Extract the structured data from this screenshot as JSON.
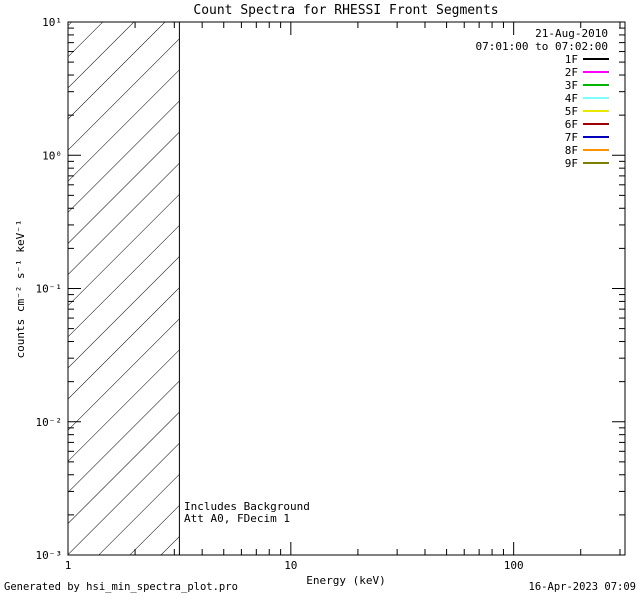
{
  "page": {
    "title": "Count Spectra for RHESSI Front Segments",
    "footer_left": "Generated by hsi_min_spectra_plot.pro",
    "footer_right": "16-Apr-2023 07:09"
  },
  "chart_data": {
    "type": "line",
    "title": "Count Spectra for RHESSI Front Segments",
    "xlabel": "Energy (keV)",
    "ylabel": "counts cm⁻² s⁻¹ keV⁻¹",
    "xscale": "log",
    "yscale": "log",
    "xlim": [
      1,
      316
    ],
    "ylim": [
      0.001,
      10
    ],
    "grid": false,
    "x_ticks": [
      {
        "value": 1,
        "label": "1"
      },
      {
        "value": 10,
        "label": "10"
      },
      {
        "value": 100,
        "label": "100"
      }
    ],
    "y_ticks": [
      {
        "value": 10,
        "label": "10¹"
      },
      {
        "value": 1,
        "label": "10⁰"
      },
      {
        "value": 0.1,
        "label": "10⁻¹"
      },
      {
        "value": 0.01,
        "label": "10⁻²"
      },
      {
        "value": 0.001,
        "label": "10⁻³"
      }
    ],
    "series": [],
    "hatched_region": {
      "x_start": 1,
      "x_end": 3.16,
      "y_span": "full",
      "style": "diagonal-hatch",
      "meaning": "low-energy attenuated/background region"
    },
    "annotations": {
      "line1": "Includes Background",
      "line2": "Att A0, FDecim 1"
    },
    "legend": {
      "position": "top-right",
      "date": "21-Aug-2010",
      "time_range": "07:01:00 to 07:02:00",
      "entries": [
        {
          "label": "1F",
          "color": "#000000"
        },
        {
          "label": "2F",
          "color": "#ff00ff"
        },
        {
          "label": "3F",
          "color": "#00b400"
        },
        {
          "label": "4F",
          "color": "#7fffff"
        },
        {
          "label": "5F",
          "color": "#e8e800"
        },
        {
          "label": "6F",
          "color": "#a00000"
        },
        {
          "label": "7F",
          "color": "#0000b8"
        },
        {
          "label": "8F",
          "color": "#ff9000"
        },
        {
          "label": "9F",
          "color": "#808000"
        }
      ]
    }
  }
}
